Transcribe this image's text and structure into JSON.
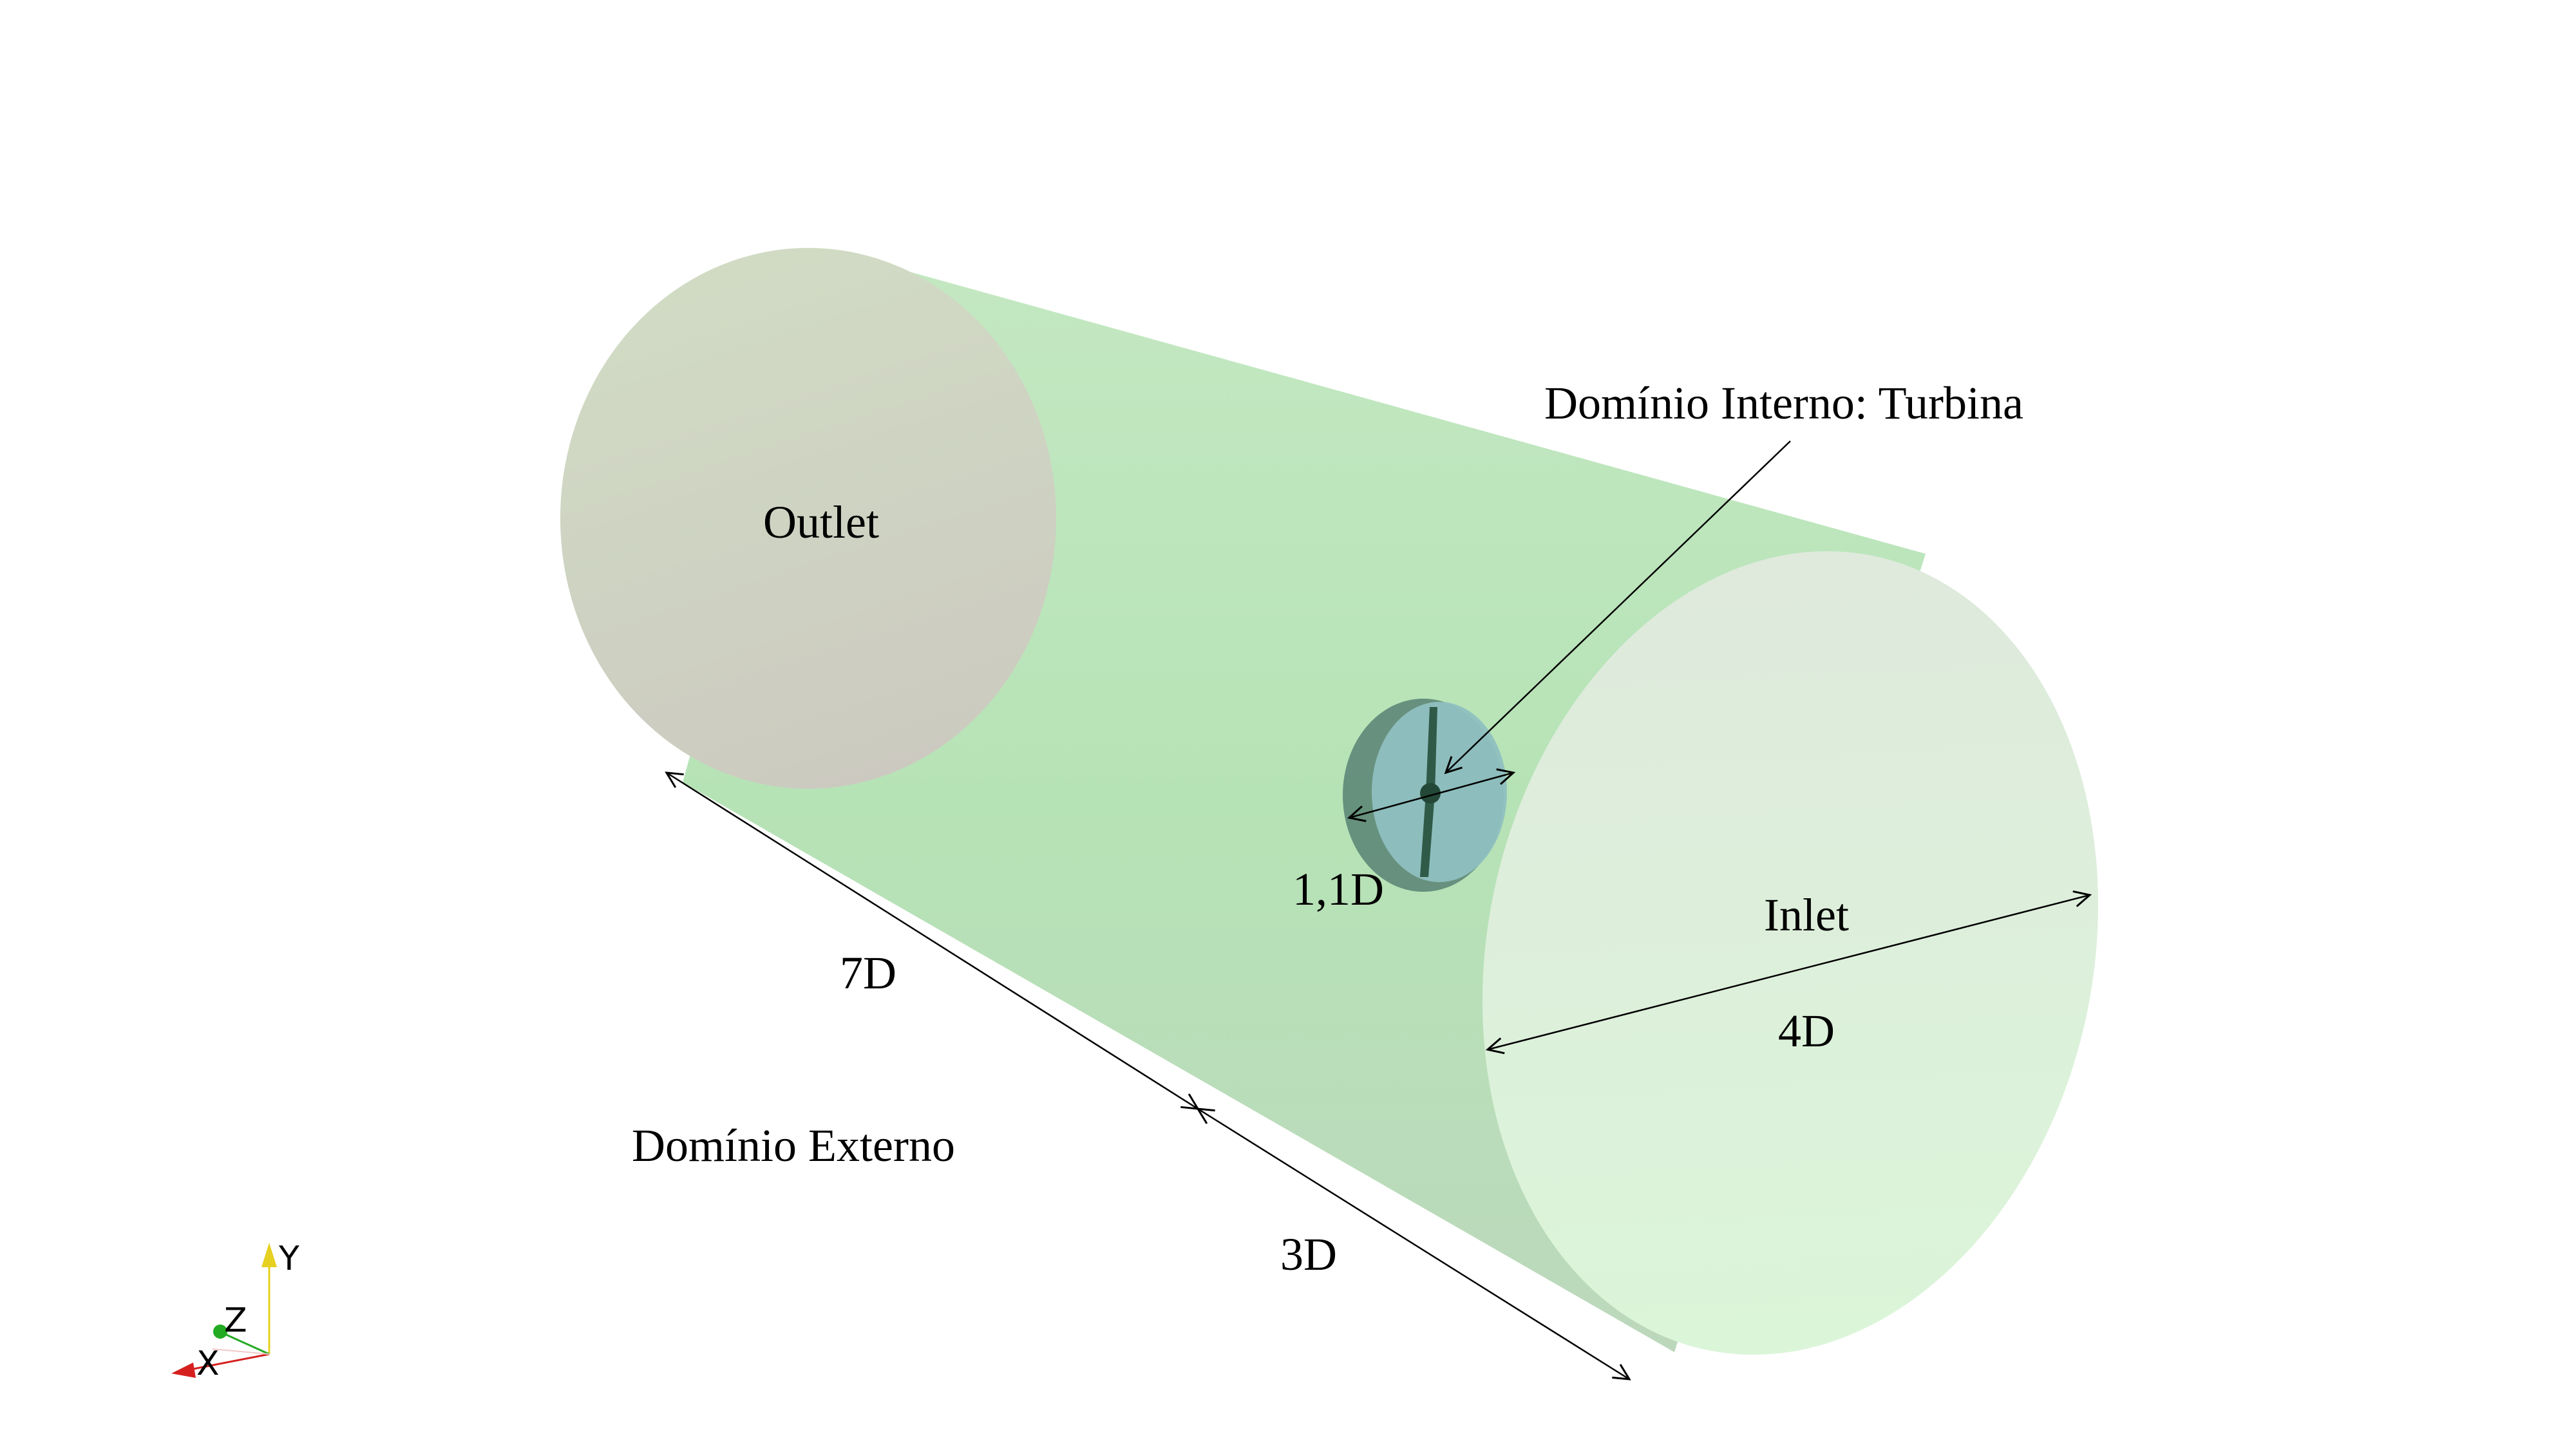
{
  "labels": {
    "outlet": "Outlet",
    "inlet": "Inlet",
    "internal_domain": "Domínio Interno: Turbina",
    "external_domain": "Domínio Externo",
    "dim_7d": "7D",
    "dim_3d": "3D",
    "dim_4d": "4D",
    "dim_1_1d": "1,1D"
  },
  "axes": {
    "x": "X",
    "y": "Y",
    "z": "Z"
  },
  "colors": {
    "domain_body": "#b9e4b9",
    "outlet_face": "#cfd5c4",
    "inlet_face": "#dcf3dc",
    "turbine_disk": "#5f8a78",
    "turbine_face": "#8fc0c0",
    "blade": "#2f5a48",
    "axis_x": "#d62020",
    "axis_y": "#e6d020",
    "axis_z": "#22aa22"
  },
  "icons": [
    "axis-triad-icon"
  ]
}
